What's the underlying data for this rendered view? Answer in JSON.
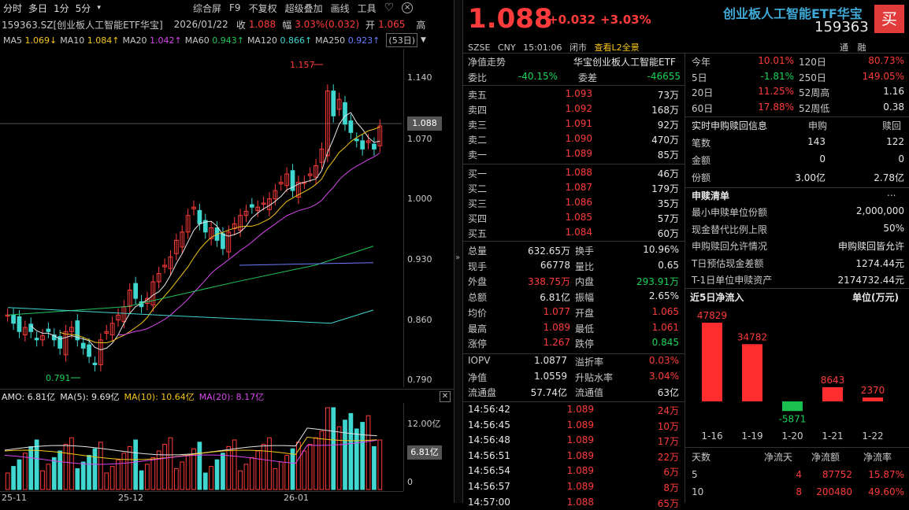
{
  "toolbar": {
    "tabs": [
      "分时",
      "多日",
      "1分",
      "5分"
    ],
    "more_icon": "chevron-down-icon",
    "actions": [
      "综合屏",
      "F9",
      "不复权",
      "超级叠加",
      "画线",
      "工具"
    ],
    "extra": [
      "heart-icon",
      "close-icon"
    ]
  },
  "chart_header": {
    "code_name": "159363.SZ[创业板人工智能ETF华宝]",
    "date": "2026/01/22",
    "close_label": "收",
    "close_value": "1.088",
    "range_label": "幅",
    "range_value": "3.03%(0.032)",
    "open_label": "开",
    "open_value": "1.065",
    "high_label": "高"
  },
  "ma_line": {
    "items": [
      {
        "name": "MA5",
        "value": "1.069↓",
        "color": "#e6e6e6"
      },
      {
        "name": "MA10",
        "value": "1.084↑",
        "color": "#f5c518"
      },
      {
        "name": "MA20",
        "value": "1.042↑",
        "color": "#d946ef"
      },
      {
        "name": "MA60",
        "value": "0.943↑",
        "color": "#22c55e"
      },
      {
        "name": "MA120",
        "value": "0.866↑",
        "color": "#3fd7d0"
      },
      {
        "name": "MA250",
        "value": "0.923↑",
        "color": "#6b7cff"
      }
    ],
    "period": "(53日)"
  },
  "price_axis": [
    "1.140",
    "1.070",
    "1.000",
    "0.930",
    "0.860",
    "0.790"
  ],
  "price_tag": "1.088",
  "annotations": {
    "high": "1.157",
    "low": "0.791"
  },
  "volume_header": {
    "amo": "AMO: 6.81亿",
    "ma5": "MA(5): 9.69亿",
    "ma10": "MA(10): 10.64亿",
    "ma20": "MA(20): 8.17亿"
  },
  "volume_axis": [
    "12.00亿",
    "0"
  ],
  "volume_tag": "6.81亿",
  "date_axis": [
    "25-11",
    "25-12",
    "26-01"
  ],
  "quote": {
    "price": "1.088",
    "change": "+0.032",
    "pct": "+3.03%",
    "name": "创业板人工智能ETF华宝",
    "code": "159363",
    "exchange": "SZSE",
    "currency": "CNY",
    "time": "15:01:06",
    "status": "闭市",
    "l2_link": "查看L2全景",
    "buy_button": "买"
  },
  "orderbook": {
    "title_left": "净值走势",
    "title_right": "华宝创业板人工智能ETF",
    "wb_label": "委比",
    "wb_value": "-40.15%",
    "wc_label": "委差",
    "wc_value": "-46655",
    "asks": [
      {
        "label": "卖五",
        "price": "1.093",
        "vol": "73万"
      },
      {
        "label": "卖四",
        "price": "1.092",
        "vol": "168万"
      },
      {
        "label": "卖三",
        "price": "1.091",
        "vol": "92万"
      },
      {
        "label": "卖二",
        "price": "1.090",
        "vol": "470万"
      },
      {
        "label": "卖一",
        "price": "1.089",
        "vol": "85万"
      }
    ],
    "bids": [
      {
        "label": "买一",
        "price": "1.088",
        "vol": "46万"
      },
      {
        "label": "买二",
        "price": "1.087",
        "vol": "179万"
      },
      {
        "label": "买三",
        "price": "1.086",
        "vol": "35万"
      },
      {
        "label": "买四",
        "price": "1.085",
        "vol": "57万"
      },
      {
        "label": "买五",
        "price": "1.084",
        "vol": "60万"
      }
    ]
  },
  "stats": [
    {
      "l1": "总量",
      "v1": "632.65万",
      "c1": "white",
      "l2": "换手",
      "v2": "10.96%",
      "c2": "white"
    },
    {
      "l1": "现手",
      "v1": "66778",
      "c1": "white",
      "l2": "量比",
      "v2": "0.65",
      "c2": "white"
    },
    {
      "l1": "外盘",
      "v1": "338.75万",
      "c1": "red",
      "l2": "内盘",
      "v2": "293.91万",
      "c2": "green"
    },
    {
      "l1": "总额",
      "v1": "6.81亿",
      "c1": "white",
      "l2": "振幅",
      "v2": "2.65%",
      "c2": "white"
    },
    {
      "l1": "均价",
      "v1": "1.077",
      "c1": "red",
      "l2": "开盘",
      "v2": "1.065",
      "c2": "red"
    },
    {
      "l1": "最高",
      "v1": "1.089",
      "c1": "red",
      "l2": "最低",
      "v2": "1.061",
      "c2": "red"
    },
    {
      "l1": "涨停",
      "v1": "1.267",
      "c1": "red",
      "l2": "跌停",
      "v2": "0.845",
      "c2": "green"
    }
  ],
  "nav": [
    {
      "l1": "IOPV",
      "v1": "1.0877",
      "c1": "white",
      "l2": "溢折率",
      "v2": "0.03%",
      "c2": "red"
    },
    {
      "l1": "净值",
      "v1": "1.0559",
      "c1": "white",
      "l2": "升贴水率",
      "v2": "3.04%",
      "c2": "red"
    },
    {
      "l1": "流通盘",
      "v1": "57.74亿",
      "c1": "white",
      "l2": "流通值",
      "v2": "63亿",
      "c2": "white"
    }
  ],
  "ticks": [
    {
      "t": "14:56:42",
      "p": "1.089",
      "v": "24万"
    },
    {
      "t": "14:56:45",
      "p": "1.089",
      "v": "10万"
    },
    {
      "t": "14:56:48",
      "p": "1.089",
      "v": "17万"
    },
    {
      "t": "14:56:51",
      "p": "1.089",
      "v": "22万"
    },
    {
      "t": "14:56:54",
      "p": "1.089",
      "v": "6万"
    },
    {
      "t": "14:56:57",
      "p": "1.089",
      "v": "8万"
    },
    {
      "t": "14:57:00",
      "p": "1.088",
      "v": "65万"
    }
  ],
  "right_tabs": [
    "通",
    "融"
  ],
  "perf": [
    {
      "l1": "今年",
      "v1": "10.01%",
      "l2": "120日",
      "v2": "80.73%",
      "c2": "red"
    },
    {
      "l1": "5日",
      "v1": "-1.81%",
      "c1": "green",
      "l2": "250日",
      "v2": "149.05%",
      "c2": "red"
    },
    {
      "l1": "20日",
      "v1": "11.25%",
      "l2": "52周高",
      "v2": "1.16",
      "c2": "white"
    },
    {
      "l1": "60日",
      "v1": "17.88%",
      "l2": "52周低",
      "v2": "0.38",
      "c2": "white"
    }
  ],
  "creation": {
    "title": "实时申购赎回信息",
    "col1": "申购",
    "col2": "赎回",
    "rows": [
      {
        "l": "笔数",
        "a": "143",
        "b": "122"
      },
      {
        "l": "金额",
        "a": "0",
        "b": "0"
      },
      {
        "l": "份额",
        "a": "3.00亿",
        "b": "2.78亿"
      }
    ]
  },
  "pcf": {
    "title": "申赎清单",
    "more": "...",
    "rows": [
      {
        "l": "最小申赎单位份额",
        "v": "2,000,000"
      },
      {
        "l": "现金替代比例上限",
        "v": "50%"
      },
      {
        "l": "申购赎回允许情况",
        "v": "申购赎回皆允许"
      },
      {
        "l": "T日预估现金差额",
        "v": "1274.44元"
      },
      {
        "l": "T-1日单位申赎资产",
        "v": "2174732.44元"
      }
    ]
  },
  "flow": {
    "title": "近5日净流入",
    "unit": "单位(万元)",
    "chart_data": {
      "type": "bar",
      "categories": [
        "1-16",
        "1-19",
        "1-20",
        "1-21",
        "1-22"
      ],
      "values": [
        47829,
        34782,
        -5871,
        8643,
        2370
      ]
    },
    "table_head": [
      "天数",
      "净流天",
      "净流额",
      "净流率"
    ],
    "table_rows": [
      {
        "d": "5",
        "n": "4",
        "a": "87752",
        "r": "15.87%"
      },
      {
        "d": "10",
        "n": "8",
        "a": "200480",
        "r": "49.60%"
      }
    ]
  }
}
